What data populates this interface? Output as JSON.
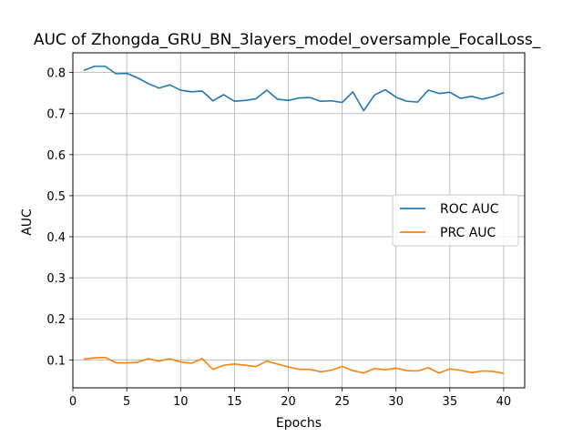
{
  "chart_data": {
    "type": "line",
    "title": "AUC of Zhongda_GRU_BN_3layers_model_oversample_FocalLoss_",
    "xlabel": "Epochs",
    "ylabel": "AUC",
    "xlim": [
      0,
      41.95
    ],
    "ylim": [
      0.032,
      0.848
    ],
    "xticks": [
      0,
      5,
      10,
      15,
      20,
      25,
      30,
      35,
      40
    ],
    "yticks": [
      0.1,
      0.2,
      0.3,
      0.4,
      0.5,
      0.6,
      0.7,
      0.8
    ],
    "xtick_labels": [
      "0",
      "5",
      "10",
      "15",
      "20",
      "25",
      "30",
      "35",
      "40"
    ],
    "ytick_labels": [
      "0.1",
      "0.2",
      "0.3",
      "0.4",
      "0.5",
      "0.6",
      "0.7",
      "0.8"
    ],
    "grid": true,
    "legend": "center-right",
    "x": [
      1,
      2,
      3,
      4,
      5,
      6,
      7,
      8,
      9,
      10,
      11,
      12,
      13,
      14,
      15,
      16,
      17,
      18,
      19,
      20,
      21,
      22,
      23,
      24,
      25,
      26,
      27,
      28,
      29,
      30,
      31,
      32,
      33,
      34,
      35,
      36,
      37,
      38,
      39,
      40
    ],
    "series": [
      {
        "name": "ROC AUC",
        "color": "#1f77b4",
        "values": [
          0.805,
          0.815,
          0.815,
          0.797,
          0.798,
          0.787,
          0.773,
          0.762,
          0.77,
          0.757,
          0.753,
          0.755,
          0.731,
          0.746,
          0.73,
          0.732,
          0.736,
          0.757,
          0.735,
          0.732,
          0.738,
          0.739,
          0.73,
          0.731,
          0.727,
          0.753,
          0.707,
          0.745,
          0.758,
          0.74,
          0.73,
          0.728,
          0.757,
          0.749,
          0.752,
          0.737,
          0.742,
          0.735,
          0.741,
          0.751
        ]
      },
      {
        "name": "PRC AUC",
        "color": "#ff7f0e",
        "values": [
          0.102,
          0.105,
          0.106,
          0.093,
          0.093,
          0.094,
          0.103,
          0.097,
          0.103,
          0.095,
          0.092,
          0.103,
          0.077,
          0.087,
          0.09,
          0.087,
          0.084,
          0.097,
          0.09,
          0.083,
          0.077,
          0.077,
          0.071,
          0.075,
          0.084,
          0.074,
          0.068,
          0.079,
          0.076,
          0.08,
          0.074,
          0.073,
          0.081,
          0.068,
          0.078,
          0.075,
          0.069,
          0.073,
          0.072,
          0.067
        ]
      }
    ]
  }
}
